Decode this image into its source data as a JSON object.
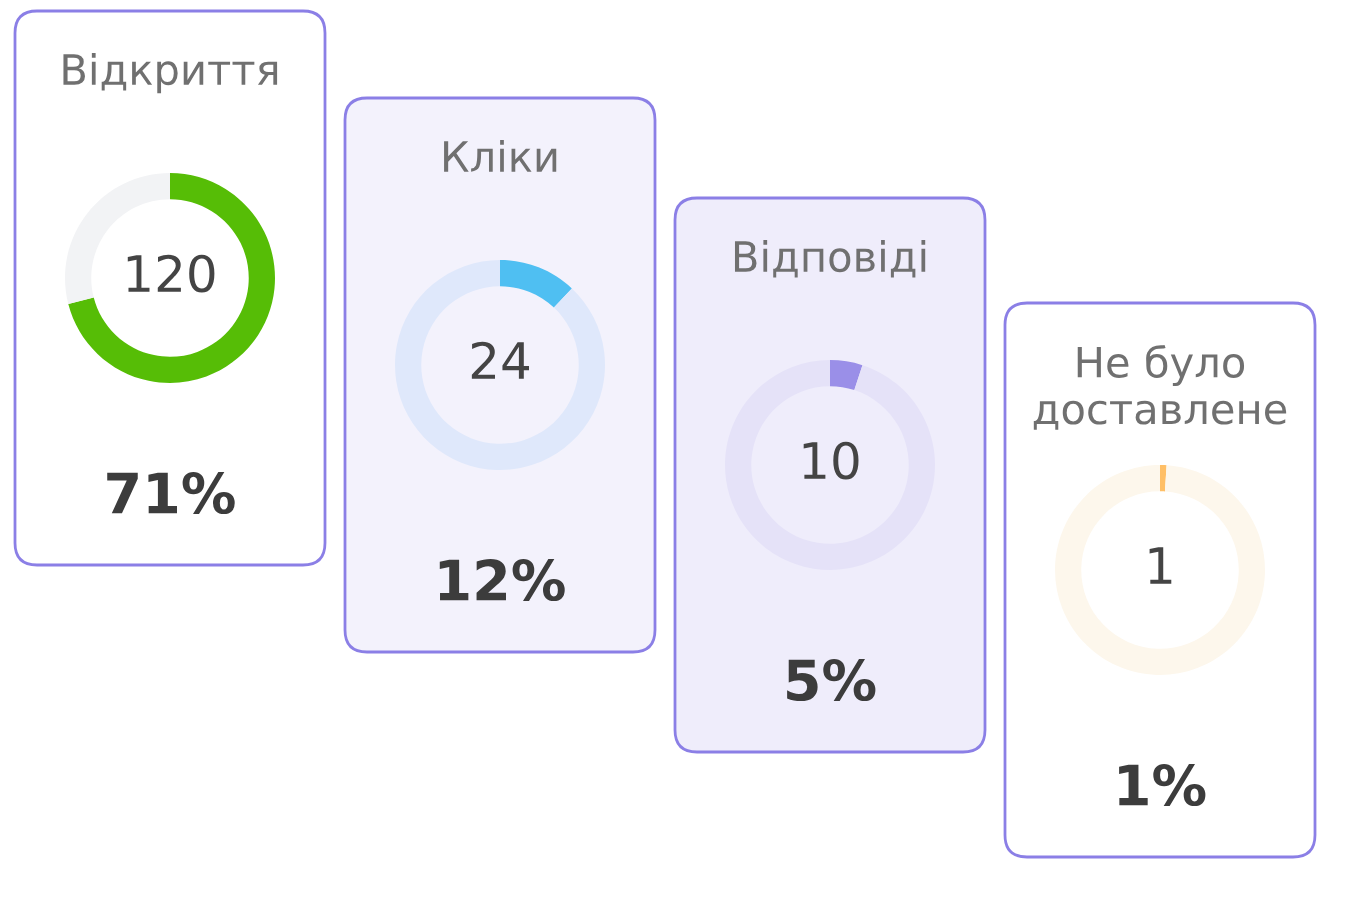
{
  "chart_data": [
    {
      "type": "donut",
      "title": "Відкриття",
      "categories": [
        null,
        null
      ],
      "values": [
        71,
        29
      ],
      "colors": [
        "#56bd06",
        "#f2f3f5"
      ],
      "annotations": [
        "120",
        "71%"
      ]
    },
    {
      "type": "donut",
      "title": "Кліки",
      "categories": [
        null,
        null
      ],
      "values": [
        12,
        88
      ],
      "colors": [
        "#4fbff2",
        "#dfe8fb"
      ],
      "annotations": [
        "24",
        "12%"
      ]
    },
    {
      "type": "donut",
      "title": "Відповіді",
      "categories": [
        null,
        null
      ],
      "values": [
        5,
        95
      ],
      "colors": [
        "#9a8fe8",
        "#e5e2f8"
      ],
      "annotations": [
        "10",
        "5%"
      ]
    },
    {
      "type": "donut",
      "title": "Не було доставлене",
      "categories": [
        null,
        null
      ],
      "values": [
        1,
        99
      ],
      "colors": [
        "#ffbf66",
        "#fdf7ec"
      ],
      "annotations": [
        "1",
        "1%"
      ]
    }
  ]
}
